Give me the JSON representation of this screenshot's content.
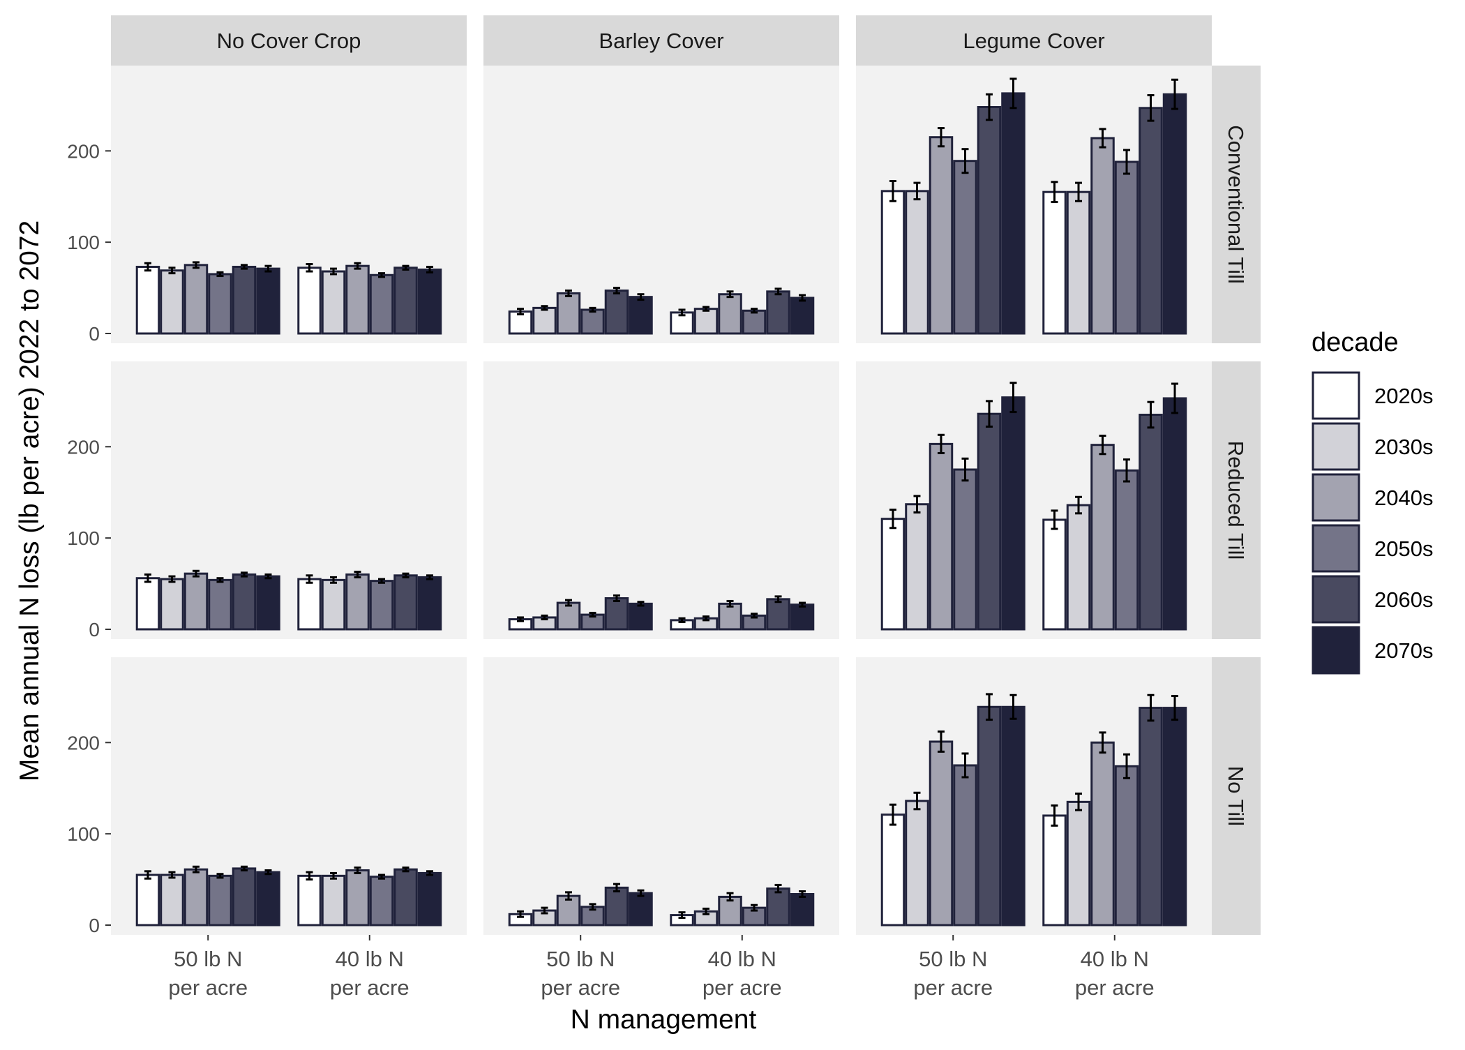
{
  "chart_data": {
    "type": "bar",
    "xlabel": "N management",
    "ylabel": "Mean annual N loss (lb per acre) 2022 to 2072",
    "ylim": [
      0,
      270
    ],
    "yticks": [
      0,
      100,
      200
    ],
    "grid": false,
    "legend": {
      "title": "decade",
      "position": "right"
    },
    "columns": [
      "No Cover Crop",
      "Barley Cover",
      "Legume Cover"
    ],
    "rows": [
      "Conventional Till",
      "Reduced Till",
      "No Till"
    ],
    "categories": [
      "50 lb N\nper acre",
      "40 lb N\nper acre"
    ],
    "series": [
      {
        "name": "2020s",
        "color": "#ffffff"
      },
      {
        "name": "2030s",
        "color": "#d2d2d8"
      },
      {
        "name": "2040s",
        "color": "#a3a3b0"
      },
      {
        "name": "2050s",
        "color": "#747488"
      },
      {
        "name": "2060s",
        "color": "#494a60"
      },
      {
        "name": "2070s",
        "color": "#20223b"
      }
    ],
    "panels": [
      {
        "row": "Conventional Till",
        "col": "No Cover Crop",
        "values": [
          [
            73,
            69,
            75,
            65,
            73,
            71
          ],
          [
            72,
            68,
            74,
            64,
            72,
            70
          ]
        ],
        "err": [
          [
            4,
            3,
            3,
            2,
            2,
            3
          ],
          [
            4,
            3,
            3,
            2,
            2,
            3
          ]
        ]
      },
      {
        "row": "Conventional Till",
        "col": "Barley Cover",
        "values": [
          [
            24,
            28,
            44,
            26,
            47,
            40
          ],
          [
            23,
            27,
            43,
            25,
            46,
            39
          ]
        ],
        "err": [
          [
            3,
            2,
            3,
            2,
            3,
            3
          ],
          [
            3,
            2,
            3,
            2,
            3,
            3
          ]
        ]
      },
      {
        "row": "Conventional Till",
        "col": "Legume Cover",
        "values": [
          [
            156,
            156,
            215,
            189,
            248,
            263
          ],
          [
            155,
            155,
            214,
            188,
            247,
            262
          ]
        ],
        "err": [
          [
            11,
            9,
            10,
            13,
            14,
            16
          ],
          [
            11,
            10,
            10,
            13,
            14,
            16
          ]
        ]
      },
      {
        "row": "Reduced Till",
        "col": "No Cover Crop",
        "values": [
          [
            56,
            55,
            61,
            54,
            60,
            58
          ],
          [
            55,
            54,
            60,
            53,
            59,
            57
          ]
        ],
        "err": [
          [
            4,
            3,
            3,
            2,
            2,
            2
          ],
          [
            4,
            3,
            3,
            2,
            2,
            2
          ]
        ]
      },
      {
        "row": "Reduced Till",
        "col": "Barley Cover",
        "values": [
          [
            11,
            13,
            29,
            16,
            34,
            28
          ],
          [
            10,
            12,
            28,
            15,
            33,
            27
          ]
        ],
        "err": [
          [
            2,
            2,
            3,
            2,
            3,
            2
          ],
          [
            2,
            2,
            3,
            2,
            3,
            2
          ]
        ]
      },
      {
        "row": "Reduced Till",
        "col": "Legume Cover",
        "values": [
          [
            121,
            137,
            203,
            175,
            236,
            254
          ],
          [
            120,
            136,
            202,
            174,
            235,
            253
          ]
        ],
        "err": [
          [
            10,
            9,
            10,
            12,
            14,
            16
          ],
          [
            10,
            9,
            10,
            12,
            14,
            16
          ]
        ]
      },
      {
        "row": "No Till",
        "col": "No Cover Crop",
        "values": [
          [
            55,
            55,
            61,
            54,
            62,
            58
          ],
          [
            54,
            54,
            60,
            53,
            61,
            57
          ]
        ],
        "err": [
          [
            4,
            3,
            3,
            2,
            2,
            2
          ],
          [
            4,
            3,
            3,
            2,
            2,
            2
          ]
        ]
      },
      {
        "row": "No Till",
        "col": "Barley Cover",
        "values": [
          [
            12,
            16,
            32,
            20,
            41,
            35
          ],
          [
            11,
            15,
            31,
            19,
            40,
            34
          ]
        ],
        "err": [
          [
            3,
            3,
            4,
            3,
            4,
            3
          ],
          [
            3,
            3,
            4,
            3,
            4,
            3
          ]
        ]
      },
      {
        "row": "No Till",
        "col": "Legume Cover",
        "values": [
          [
            121,
            136,
            201,
            175,
            239,
            239
          ],
          [
            120,
            135,
            200,
            174,
            238,
            238
          ]
        ],
        "err": [
          [
            11,
            9,
            11,
            13,
            14,
            13
          ],
          [
            11,
            9,
            11,
            13,
            14,
            13
          ]
        ]
      }
    ]
  }
}
